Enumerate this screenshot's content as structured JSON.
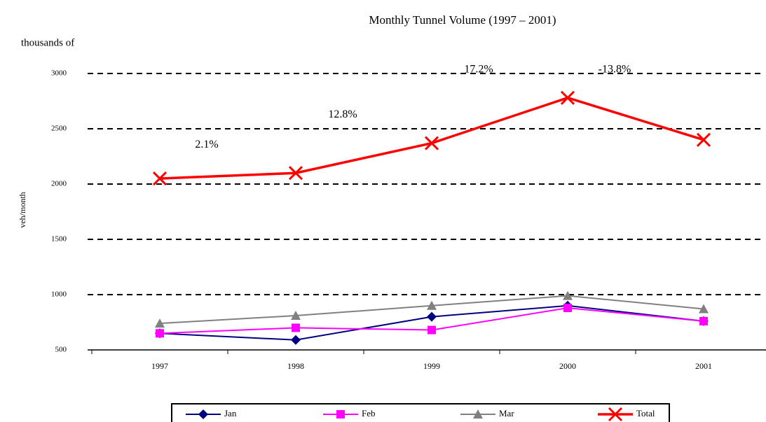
{
  "chart_data": {
    "type": "line",
    "title": "Monthly Tunnel Volume  (1997 – 2001)",
    "unit_label": "thousands of",
    "y_label": "veh/month",
    "categories": [
      "1997",
      "1998",
      "1999",
      "2000",
      "2001"
    ],
    "series": [
      {
        "name": "Jan",
        "color": "#000080",
        "marker": "diamond",
        "values": [
          650,
          590,
          800,
          900,
          760
        ]
      },
      {
        "name": "Feb",
        "color": "#ff00ff",
        "marker": "square",
        "values": [
          650,
          700,
          680,
          880,
          760
        ]
      },
      {
        "name": "Mar",
        "color": "#808080",
        "marker": "triangle",
        "values": [
          740,
          810,
          900,
          990,
          870
        ]
      },
      {
        "name": "Total",
        "color": "#ff0000",
        "marker": "x",
        "values": [
          2050,
          2100,
          2370,
          2780,
          2400
        ]
      }
    ],
    "annotations": [
      "2.1%",
      "12.8%",
      "17.2%",
      "-13.8%"
    ],
    "ylim": [
      500,
      3000
    ],
    "yticks": [
      500,
      1000,
      1500,
      2000,
      2500,
      3000
    ],
    "grid": true,
    "legend": "bottom"
  }
}
